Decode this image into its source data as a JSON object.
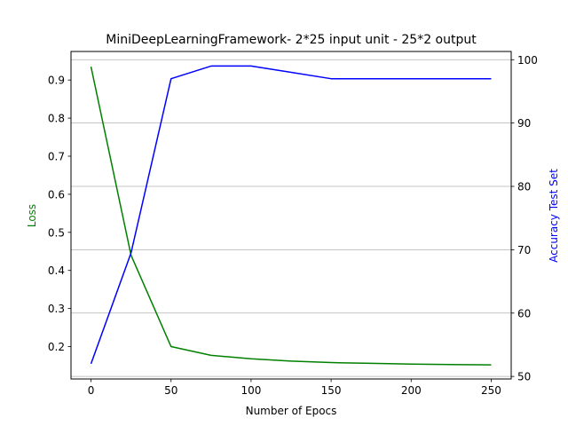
{
  "chart_data": {
    "type": "line",
    "title": "MiniDeepLearningFramework- 2*25 input unit - 25*2 output",
    "xlabel": "Number of Epocs",
    "ylabel_left": "Loss",
    "ylabel_right": "Accuracy Test Set",
    "xlim": [
      -12.5,
      262.5
    ],
    "ylim_left": [
      0.115,
      0.975
    ],
    "ylim_right": [
      49.6,
      101.3
    ],
    "x_ticks": [
      0,
      50,
      100,
      150,
      200,
      250
    ],
    "y_left_ticks": [
      0.2,
      0.3,
      0.4,
      0.5,
      0.6,
      0.7,
      0.8,
      0.9
    ],
    "y_right_ticks": [
      50,
      60,
      70,
      80,
      90,
      100
    ],
    "grid": "horizontal, right axis",
    "series": [
      {
        "axis": "left",
        "color": "#008000",
        "x": [
          0,
          25,
          50,
          75,
          100,
          125,
          150,
          175,
          200,
          225,
          250
        ],
        "values": [
          0.935,
          0.44,
          0.2,
          0.177,
          0.168,
          0.162,
          0.158,
          0.156,
          0.154,
          0.153,
          0.152
        ]
      },
      {
        "axis": "right",
        "color": "#0000ff",
        "x": [
          0,
          25,
          50,
          75,
          100,
          125,
          150,
          175,
          200,
          225,
          250
        ],
        "values": [
          52,
          69.5,
          97,
          99,
          99,
          98,
          97,
          97,
          97,
          97,
          97
        ]
      }
    ]
  }
}
